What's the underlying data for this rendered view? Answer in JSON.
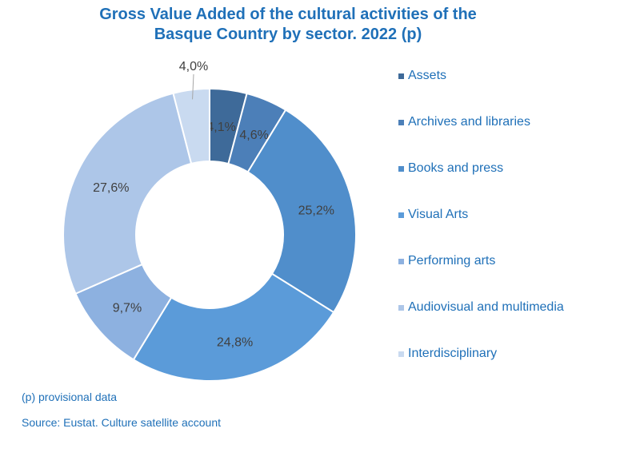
{
  "title_line1": "Gross Value Added of the cultural activities of the",
  "title_line2": "Basque Country by sector. 2022 (p)",
  "notes": {
    "provisional": "(p) provisional data",
    "source": "Source: Eustat. Culture satellite account"
  },
  "chart_data": {
    "type": "pie",
    "donut": true,
    "legend_position": "right",
    "slices": [
      {
        "label": "Assets",
        "value": 4.1,
        "display": "4,1%",
        "color": "#3E6A99"
      },
      {
        "label": "Archives and libraries",
        "value": 4.6,
        "display": "4,6%",
        "color": "#4C7FB8"
      },
      {
        "label": "Books and press",
        "value": 25.2,
        "display": "25,2%",
        "color": "#508ECB"
      },
      {
        "label": "Visual Arts",
        "value": 24.8,
        "display": "24,8%",
        "color": "#5B9BD9"
      },
      {
        "label": "Performing arts",
        "value": 9.7,
        "display": "9,7%",
        "color": "#8DB1E0"
      },
      {
        "label": "Audiovisual and multimedia",
        "value": 27.6,
        "display": "27,6%",
        "color": "#ADC6E8"
      },
      {
        "label": "Interdisciplinary",
        "value": 4.0,
        "display": "4,0%",
        "color": "#C9DAF0"
      }
    ]
  }
}
